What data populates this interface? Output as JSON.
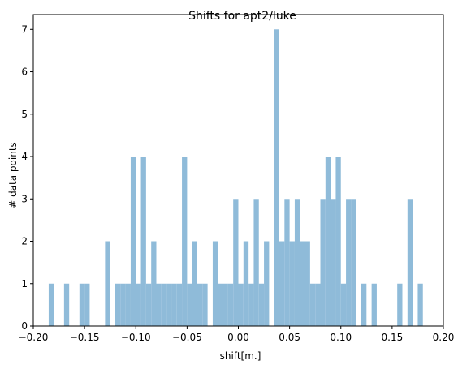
{
  "chart_data": {
    "type": "bar",
    "title": "Shifts for apt2/luke",
    "xlabel": "shift[m.]",
    "ylabel": "# data points",
    "xlim": [
      -0.2,
      0.2
    ],
    "ylim": [
      0,
      7.35
    ],
    "x_ticks": [
      "−0.20",
      "−0.15",
      "−0.10",
      "−0.05",
      "0.00",
      "0.05",
      "0.10",
      "0.15",
      "0.20"
    ],
    "y_ticks": [
      "0",
      "1",
      "2",
      "3",
      "4",
      "5",
      "6",
      "7"
    ],
    "bin_width": 0.005,
    "bar_color": "#8fbbd9",
    "bins": [
      {
        "x": -0.1825,
        "count": 1
      },
      {
        "x": -0.1675,
        "count": 1
      },
      {
        "x": -0.1525,
        "count": 1
      },
      {
        "x": -0.1475,
        "count": 1
      },
      {
        "x": -0.1275,
        "count": 2
      },
      {
        "x": -0.1175,
        "count": 1
      },
      {
        "x": -0.1125,
        "count": 1
      },
      {
        "x": -0.1075,
        "count": 1
      },
      {
        "x": -0.1025,
        "count": 4
      },
      {
        "x": -0.0975,
        "count": 1
      },
      {
        "x": -0.0925,
        "count": 4
      },
      {
        "x": -0.0875,
        "count": 1
      },
      {
        "x": -0.0825,
        "count": 2
      },
      {
        "x": -0.0775,
        "count": 1
      },
      {
        "x": -0.0725,
        "count": 1
      },
      {
        "x": -0.0675,
        "count": 1
      },
      {
        "x": -0.0625,
        "count": 1
      },
      {
        "x": -0.0575,
        "count": 1
      },
      {
        "x": -0.0525,
        "count": 4
      },
      {
        "x": -0.0475,
        "count": 1
      },
      {
        "x": -0.0425,
        "count": 2
      },
      {
        "x": -0.0375,
        "count": 1
      },
      {
        "x": -0.0325,
        "count": 1
      },
      {
        "x": -0.0225,
        "count": 2
      },
      {
        "x": -0.0175,
        "count": 1
      },
      {
        "x": -0.0125,
        "count": 1
      },
      {
        "x": -0.0075,
        "count": 1
      },
      {
        "x": -0.0025,
        "count": 3
      },
      {
        "x": 0.0025,
        "count": 1
      },
      {
        "x": 0.0075,
        "count": 2
      },
      {
        "x": 0.0125,
        "count": 1
      },
      {
        "x": 0.0175,
        "count": 3
      },
      {
        "x": 0.0225,
        "count": 1
      },
      {
        "x": 0.0275,
        "count": 2
      },
      {
        "x": 0.0375,
        "count": 7
      },
      {
        "x": 0.0425,
        "count": 2
      },
      {
        "x": 0.0475,
        "count": 3
      },
      {
        "x": 0.0525,
        "count": 2
      },
      {
        "x": 0.0575,
        "count": 3
      },
      {
        "x": 0.0625,
        "count": 2
      },
      {
        "x": 0.0675,
        "count": 2
      },
      {
        "x": 0.0725,
        "count": 1
      },
      {
        "x": 0.0775,
        "count": 1
      },
      {
        "x": 0.0825,
        "count": 3
      },
      {
        "x": 0.0875,
        "count": 4
      },
      {
        "x": 0.0925,
        "count": 3
      },
      {
        "x": 0.0975,
        "count": 4
      },
      {
        "x": 0.1025,
        "count": 1
      },
      {
        "x": 0.1075,
        "count": 3
      },
      {
        "x": 0.1125,
        "count": 3
      },
      {
        "x": 0.1225,
        "count": 1
      },
      {
        "x": 0.1325,
        "count": 1
      },
      {
        "x": 0.1575,
        "count": 1
      },
      {
        "x": 0.1675,
        "count": 3
      },
      {
        "x": 0.1775,
        "count": 1
      }
    ]
  }
}
